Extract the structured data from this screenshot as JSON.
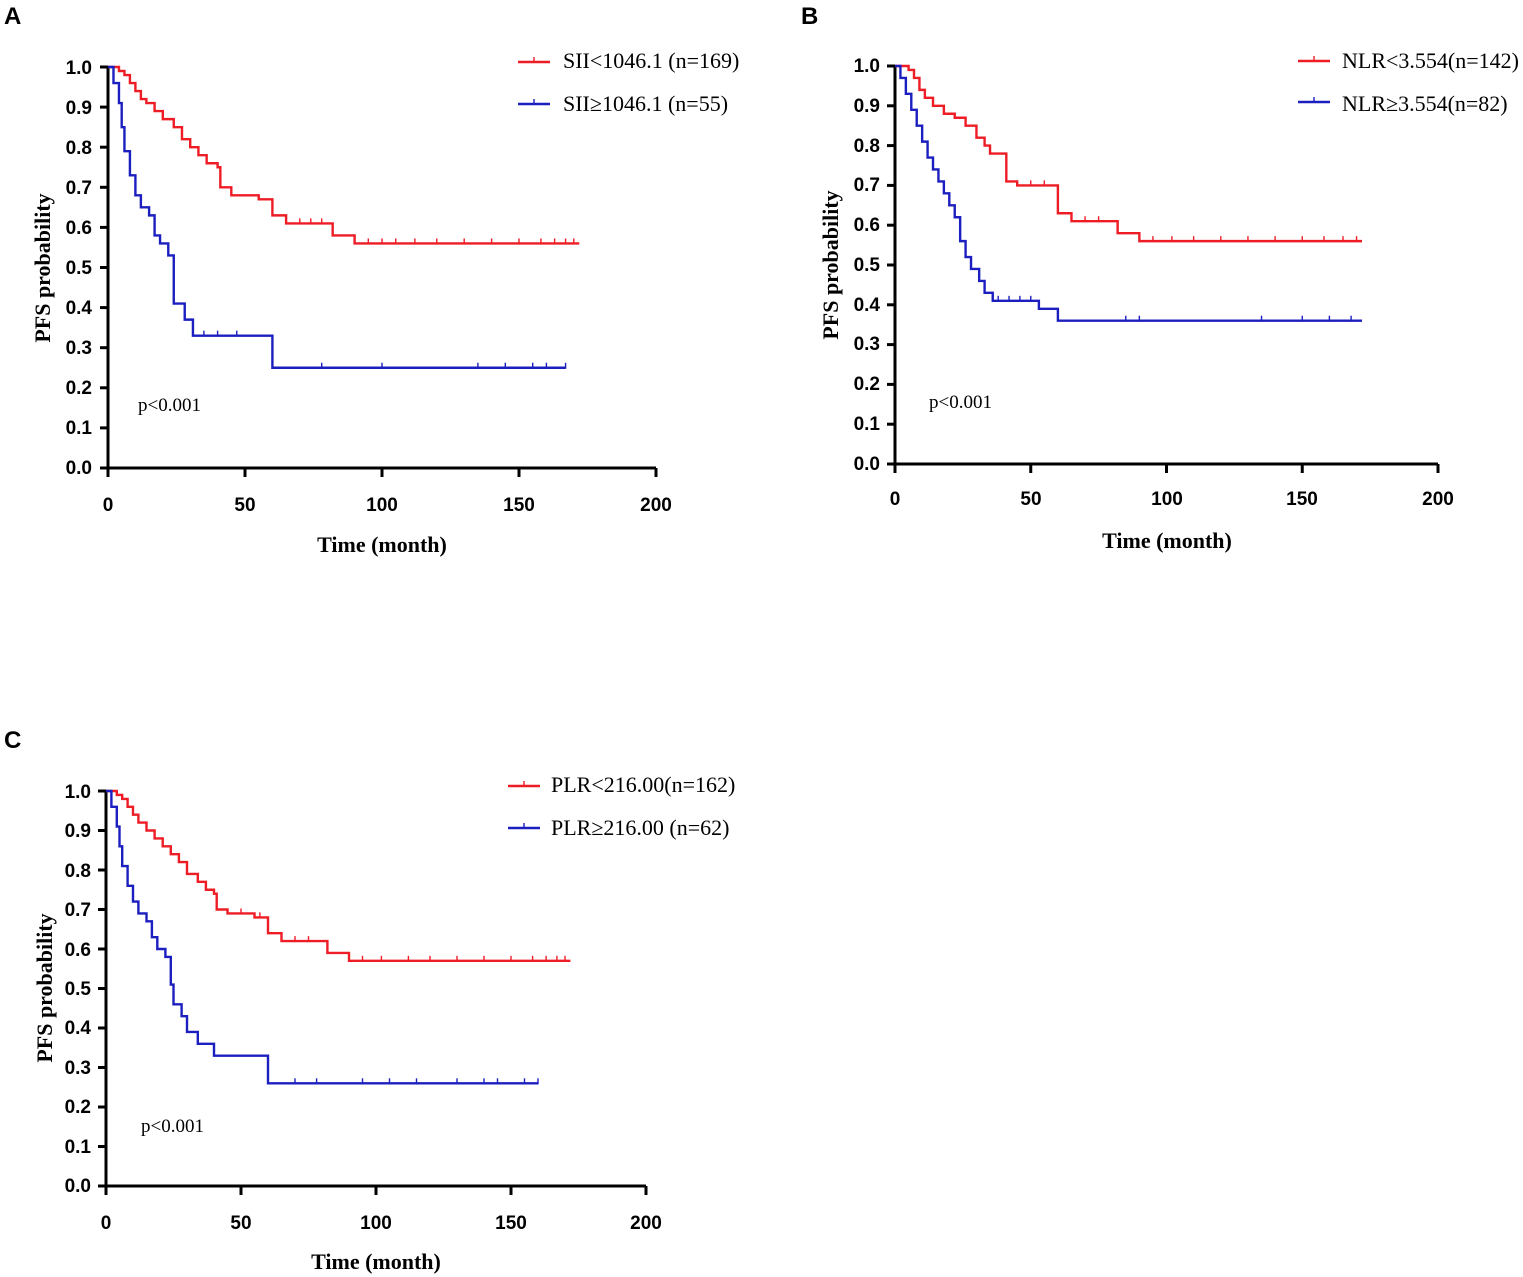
{
  "colors": {
    "red": "#ee1c25",
    "blue": "#1c1fbf",
    "axis": "#000000"
  },
  "chart_data": [
    {
      "type": "line",
      "panel": "A",
      "title": "",
      "xlabel": "Time (month)",
      "ylabel": "PFS probability",
      "xlim": [
        0,
        200
      ],
      "ylim": [
        0,
        1.0
      ],
      "xticks": [
        "0",
        "50",
        "100",
        "150",
        "200"
      ],
      "yticks": [
        "0.0",
        "0.1",
        "0.2",
        "0.3",
        "0.4",
        "0.5",
        "0.6",
        "0.7",
        "0.8",
        "0.9",
        "1.0"
      ],
      "annotation": "p<0.001",
      "legend_position": "top-right",
      "series": [
        {
          "name": "SII<1046.1 (n=169)",
          "color": "#ee1c25",
          "steps": [
            [
              0,
              1.0
            ],
            [
              4,
              0.99
            ],
            [
              6,
              0.98
            ],
            [
              8,
              0.96
            ],
            [
              10,
              0.94
            ],
            [
              12,
              0.92
            ],
            [
              14,
              0.91
            ],
            [
              17,
              0.89
            ],
            [
              20,
              0.87
            ],
            [
              24,
              0.85
            ],
            [
              27,
              0.82
            ],
            [
              30,
              0.8
            ],
            [
              33,
              0.78
            ],
            [
              36,
              0.76
            ],
            [
              40,
              0.75
            ],
            [
              41,
              0.7
            ],
            [
              45,
              0.68
            ],
            [
              55,
              0.67
            ],
            [
              60,
              0.63
            ],
            [
              65,
              0.61
            ],
            [
              82,
              0.58
            ],
            [
              90,
              0.56
            ],
            [
              172,
              0.56
            ]
          ],
          "censors": [
            70,
            74,
            78,
            95,
            100,
            105,
            112,
            120,
            130,
            140,
            150,
            158,
            163,
            167,
            170
          ]
        },
        {
          "name": "SII≥1046.1 (n=55)",
          "color": "#1c1fbf",
          "steps": [
            [
              0,
              1.0
            ],
            [
              2,
              0.96
            ],
            [
              4,
              0.91
            ],
            [
              5,
              0.85
            ],
            [
              6,
              0.79
            ],
            [
              8,
              0.73
            ],
            [
              10,
              0.68
            ],
            [
              12,
              0.65
            ],
            [
              15,
              0.63
            ],
            [
              17,
              0.58
            ],
            [
              19,
              0.56
            ],
            [
              22,
              0.53
            ],
            [
              24,
              0.41
            ],
            [
              28,
              0.37
            ],
            [
              31,
              0.33
            ],
            [
              60,
              0.25
            ],
            [
              167,
              0.25
            ]
          ],
          "censors": [
            35,
            40,
            47,
            78,
            100,
            135,
            145,
            155,
            160,
            167
          ]
        }
      ]
    },
    {
      "type": "line",
      "panel": "B",
      "title": "",
      "xlabel": "Time (month)",
      "ylabel": "PFS probability",
      "xlim": [
        0,
        200
      ],
      "ylim": [
        0,
        1.0
      ],
      "xticks": [
        "0",
        "50",
        "100",
        "150",
        "200"
      ],
      "yticks": [
        "0.0",
        "0.1",
        "0.2",
        "0.3",
        "0.4",
        "0.5",
        "0.6",
        "0.7",
        "0.8",
        "0.9",
        "1.0"
      ],
      "annotation": "p<0.001",
      "legend_position": "top-right",
      "series": [
        {
          "name": "NLR<3.554(n=142)",
          "color": "#ee1c25",
          "steps": [
            [
              0,
              1.0
            ],
            [
              5,
              0.99
            ],
            [
              7,
              0.97
            ],
            [
              9,
              0.94
            ],
            [
              11,
              0.92
            ],
            [
              14,
              0.9
            ],
            [
              18,
              0.88
            ],
            [
              22,
              0.87
            ],
            [
              26,
              0.85
            ],
            [
              30,
              0.82
            ],
            [
              33,
              0.8
            ],
            [
              35,
              0.78
            ],
            [
              41,
              0.71
            ],
            [
              45,
              0.7
            ],
            [
              60,
              0.63
            ],
            [
              65,
              0.61
            ],
            [
              82,
              0.58
            ],
            [
              90,
              0.56
            ],
            [
              172,
              0.56
            ]
          ],
          "censors": [
            50,
            55,
            70,
            75,
            95,
            102,
            110,
            120,
            130,
            140,
            150,
            158,
            165,
            170
          ]
        },
        {
          "name": "NLR≥3.554(n=82)",
          "color": "#1c1fbf",
          "steps": [
            [
              0,
              1.0
            ],
            [
              2,
              0.97
            ],
            [
              4,
              0.93
            ],
            [
              6,
              0.89
            ],
            [
              8,
              0.85
            ],
            [
              10,
              0.81
            ],
            [
              12,
              0.77
            ],
            [
              14,
              0.74
            ],
            [
              16,
              0.71
            ],
            [
              18,
              0.68
            ],
            [
              20,
              0.65
            ],
            [
              22,
              0.62
            ],
            [
              24,
              0.56
            ],
            [
              26,
              0.52
            ],
            [
              28,
              0.49
            ],
            [
              31,
              0.46
            ],
            [
              33,
              0.43
            ],
            [
              36,
              0.41
            ],
            [
              53,
              0.39
            ],
            [
              60,
              0.36
            ],
            [
              172,
              0.36
            ]
          ],
          "censors": [
            38,
            42,
            46,
            50,
            85,
            90,
            135,
            150,
            160,
            168
          ]
        }
      ]
    },
    {
      "type": "line",
      "panel": "C",
      "title": "",
      "xlabel": "Time (month)",
      "ylabel": "PFS probability",
      "xlim": [
        0,
        200
      ],
      "ylim": [
        0,
        1.0
      ],
      "xticks": [
        "0",
        "50",
        "100",
        "150",
        "200"
      ],
      "yticks": [
        "0.0",
        "0.1",
        "0.2",
        "0.3",
        "0.4",
        "0.5",
        "0.6",
        "0.7",
        "0.8",
        "0.9",
        "1.0"
      ],
      "annotation": "p<0.001",
      "legend_position": "top-right",
      "series": [
        {
          "name": "PLR<216.00(n=162)",
          "color": "#ee1c25",
          "steps": [
            [
              0,
              1.0
            ],
            [
              4,
              0.99
            ],
            [
              6,
              0.98
            ],
            [
              8,
              0.96
            ],
            [
              10,
              0.94
            ],
            [
              12,
              0.92
            ],
            [
              15,
              0.9
            ],
            [
              18,
              0.88
            ],
            [
              21,
              0.86
            ],
            [
              24,
              0.84
            ],
            [
              27,
              0.82
            ],
            [
              30,
              0.79
            ],
            [
              34,
              0.77
            ],
            [
              37,
              0.75
            ],
            [
              40,
              0.74
            ],
            [
              41,
              0.7
            ],
            [
              45,
              0.69
            ],
            [
              55,
              0.68
            ],
            [
              60,
              0.64
            ],
            [
              65,
              0.62
            ],
            [
              82,
              0.59
            ],
            [
              90,
              0.57
            ],
            [
              172,
              0.57
            ]
          ],
          "censors": [
            50,
            57,
            70,
            75,
            95,
            102,
            112,
            120,
            130,
            140,
            150,
            158,
            163,
            167,
            170
          ]
        },
        {
          "name": "PLR≥216.00 (n=62)",
          "color": "#1c1fbf",
          "steps": [
            [
              0,
              1.0
            ],
            [
              2,
              0.96
            ],
            [
              4,
              0.91
            ],
            [
              5,
              0.86
            ],
            [
              6,
              0.81
            ],
            [
              8,
              0.76
            ],
            [
              10,
              0.72
            ],
            [
              12,
              0.69
            ],
            [
              15,
              0.67
            ],
            [
              17,
              0.63
            ],
            [
              19,
              0.6
            ],
            [
              22,
              0.58
            ],
            [
              24,
              0.51
            ],
            [
              25,
              0.46
            ],
            [
              28,
              0.43
            ],
            [
              30,
              0.39
            ],
            [
              34,
              0.36
            ],
            [
              40,
              0.33
            ],
            [
              60,
              0.26
            ],
            [
              160,
              0.26
            ]
          ],
          "censors": [
            70,
            78,
            95,
            105,
            115,
            130,
            140,
            145,
            155,
            160
          ]
        }
      ]
    }
  ]
}
